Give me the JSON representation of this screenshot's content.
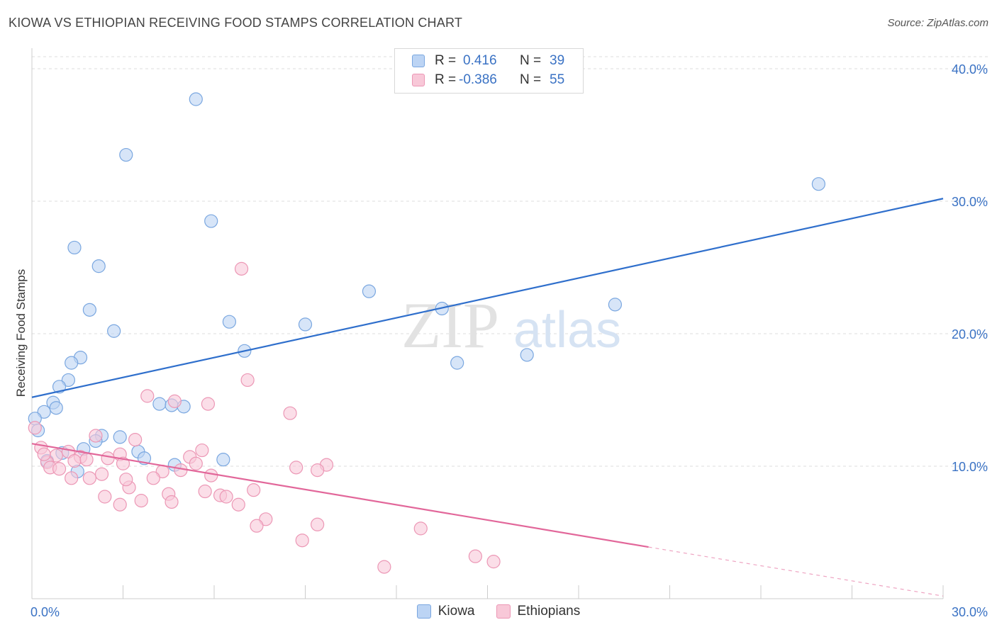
{
  "title": "KIOWA VS ETHIOPIAN RECEIVING FOOD STAMPS CORRELATION CHART",
  "source": "Source: ZipAtlas.com",
  "watermark": {
    "zip": "ZIP",
    "atlas": "atlas"
  },
  "legend": {
    "rows": [
      {
        "r_label": "R =",
        "r_value": "0.416",
        "n_label": "N =",
        "n_value": "39",
        "fill": "#bcd4f4",
        "stroke": "#7aa7e0"
      },
      {
        "r_label": "R =",
        "r_value": "-0.386",
        "n_label": "N =",
        "n_value": "55",
        "fill": "#f8c8d8",
        "stroke": "#ec97b5"
      }
    ]
  },
  "bottom_legend": [
    {
      "label": "Kiowa",
      "fill": "#bcd4f4",
      "stroke": "#7aa7e0"
    },
    {
      "label": "Ethiopians",
      "fill": "#f8c8d8",
      "stroke": "#ec97b5"
    }
  ],
  "chart_data": {
    "type": "scatter",
    "title": "KIOWA VS ETHIOPIAN RECEIVING FOOD STAMPS CORRELATION CHART",
    "xlabel": "",
    "ylabel": "Receiving Food Stamps",
    "xlim": [
      0,
      30
    ],
    "ylim": [
      0,
      40
    ],
    "x_tick_labels": [
      "0.0%",
      "30.0%"
    ],
    "y_ticks": [
      10,
      20,
      30,
      40
    ],
    "y_tick_labels": [
      "10.0%",
      "20.0%",
      "30.0%",
      "40.0%"
    ],
    "grid": "horizontal dashed",
    "series": [
      {
        "name": "Kiowa",
        "color": "#7aa7e0",
        "fill": "#bcd4f4",
        "line_color": "#2f6fcc",
        "trend": {
          "x0": 0,
          "y0": 15.2,
          "x1": 30,
          "y1": 30.2
        },
        "points": [
          [
            5.4,
            37.7
          ],
          [
            3.1,
            33.5
          ],
          [
            25.9,
            31.3
          ],
          [
            5.9,
            28.5
          ],
          [
            1.4,
            26.5
          ],
          [
            2.2,
            25.1
          ],
          [
            11.1,
            23.2
          ],
          [
            19.2,
            22.2
          ],
          [
            13.5,
            21.9
          ],
          [
            1.9,
            21.8
          ],
          [
            6.5,
            20.9
          ],
          [
            9.0,
            20.7
          ],
          [
            2.7,
            20.2
          ],
          [
            7.0,
            18.7
          ],
          [
            16.3,
            18.4
          ],
          [
            1.6,
            18.2
          ],
          [
            1.3,
            17.8
          ],
          [
            14.0,
            17.8
          ],
          [
            1.2,
            16.5
          ],
          [
            0.9,
            16.0
          ],
          [
            0.7,
            14.8
          ],
          [
            4.2,
            14.7
          ],
          [
            4.6,
            14.6
          ],
          [
            0.8,
            14.4
          ],
          [
            5.0,
            14.5
          ],
          [
            0.4,
            14.1
          ],
          [
            0.1,
            13.6
          ],
          [
            0.2,
            12.7
          ],
          [
            2.3,
            12.3
          ],
          [
            2.9,
            12.2
          ],
          [
            2.1,
            11.9
          ],
          [
            1.7,
            11.3
          ],
          [
            3.5,
            11.1
          ],
          [
            1.0,
            11.0
          ],
          [
            3.7,
            10.6
          ],
          [
            6.3,
            10.5
          ],
          [
            0.5,
            10.4
          ],
          [
            4.7,
            10.1
          ],
          [
            1.5,
            9.6
          ]
        ]
      },
      {
        "name": "Ethiopians",
        "color": "#ec97b5",
        "fill": "#f8c8d8",
        "line_color": "#e2679a",
        "trend": {
          "x0": 0,
          "y0": 11.7,
          "x1": 20.3,
          "y1": 3.9
        },
        "trend_dashed_to": {
          "x1": 30,
          "y1": 0.2
        },
        "points": [
          [
            0.1,
            12.9
          ],
          [
            6.9,
            24.9
          ],
          [
            7.1,
            16.5
          ],
          [
            3.8,
            15.3
          ],
          [
            4.7,
            14.9
          ],
          [
            5.8,
            14.7
          ],
          [
            8.5,
            14.0
          ],
          [
            2.1,
            12.3
          ],
          [
            3.4,
            12.0
          ],
          [
            0.3,
            11.4
          ],
          [
            5.6,
            11.2
          ],
          [
            1.2,
            11.1
          ],
          [
            0.8,
            10.8
          ],
          [
            2.9,
            10.9
          ],
          [
            1.6,
            10.7
          ],
          [
            2.5,
            10.6
          ],
          [
            5.2,
            10.7
          ],
          [
            3.0,
            10.2
          ],
          [
            5.4,
            10.2
          ],
          [
            0.5,
            10.3
          ],
          [
            1.4,
            10.4
          ],
          [
            9.7,
            10.1
          ],
          [
            8.7,
            9.9
          ],
          [
            9.4,
            9.7
          ],
          [
            0.6,
            9.9
          ],
          [
            0.9,
            9.8
          ],
          [
            4.9,
            9.7
          ],
          [
            4.3,
            9.6
          ],
          [
            2.3,
            9.4
          ],
          [
            5.9,
            9.3
          ],
          [
            1.3,
            9.1
          ],
          [
            1.9,
            9.1
          ],
          [
            4.0,
            9.1
          ],
          [
            3.2,
            8.4
          ],
          [
            7.3,
            8.2
          ],
          [
            5.7,
            8.1
          ],
          [
            4.5,
            7.9
          ],
          [
            2.4,
            7.7
          ],
          [
            6.2,
            7.8
          ],
          [
            6.4,
            7.7
          ],
          [
            3.6,
            7.4
          ],
          [
            4.6,
            7.3
          ],
          [
            2.9,
            7.1
          ],
          [
            6.8,
            7.1
          ],
          [
            7.7,
            6.0
          ],
          [
            9.4,
            5.6
          ],
          [
            7.4,
            5.5
          ],
          [
            12.8,
            5.3
          ],
          [
            8.9,
            4.4
          ],
          [
            14.6,
            3.2
          ],
          [
            15.2,
            2.8
          ],
          [
            11.6,
            2.4
          ],
          [
            0.4,
            10.9
          ],
          [
            1.8,
            10.5
          ],
          [
            3.1,
            9.0
          ]
        ]
      }
    ]
  }
}
